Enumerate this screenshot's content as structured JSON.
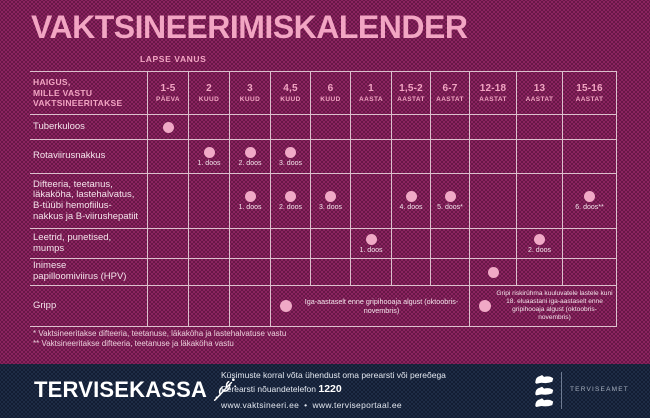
{
  "title": "VAKTSINEERIMISKALENDER",
  "age_axis_label": "LAPSE VANUS",
  "colors": {
    "background": "#9a2c6b",
    "footer_bar": "#24334f",
    "accent_pink": "#f2a5c3",
    "dot_pink": "#f0a9c6",
    "grid_line": "#dcc0cd",
    "light_text": "#f5e4ec"
  },
  "table": {
    "corner_header": [
      "HAIGUS,",
      "MILLE VASTU",
      "VAKTSINEERITAKSE"
    ],
    "age_columns": [
      {
        "value": "1-5",
        "unit": "PÄEVA"
      },
      {
        "value": "2",
        "unit": "KUUD"
      },
      {
        "value": "3",
        "unit": "KUUD"
      },
      {
        "value": "4,5",
        "unit": "KUUD"
      },
      {
        "value": "6",
        "unit": "KUUD"
      },
      {
        "value": "1",
        "unit": "AASTA"
      },
      {
        "value": "1,5-2",
        "unit": "AASTAT"
      },
      {
        "value": "6-7",
        "unit": "AASTAT"
      },
      {
        "value": "12-18",
        "unit": "AASTAT"
      },
      {
        "value": "13",
        "unit": "AASTAT"
      },
      {
        "value": "15-16",
        "unit": "AASTAT"
      }
    ],
    "rows": [
      {
        "disease_lines": [
          "Tuberkuloos"
        ],
        "doses": [
          {
            "col": 0,
            "label": ""
          }
        ]
      },
      {
        "disease_lines": [
          "Rotaviirusnakkus"
        ],
        "doses": [
          {
            "col": 1,
            "label": "1. doos"
          },
          {
            "col": 2,
            "label": "2. doos"
          },
          {
            "col": 3,
            "label": "3. doos"
          }
        ]
      },
      {
        "disease_lines": [
          "Difteeria, teetanus,",
          "läkaköha, lastehalvatus,",
          "B-tüübi hemofiilus-",
          "nakkus ja B-viirushepatiit"
        ],
        "doses": [
          {
            "col": 2,
            "label": "1. doos"
          },
          {
            "col": 3,
            "label": "2. doos"
          },
          {
            "col": 4,
            "label": "3. doos"
          },
          {
            "col": 6,
            "label": "4. doos"
          },
          {
            "col": 7,
            "label": "5. doos*"
          },
          {
            "col": 10,
            "label": "6. doos**"
          }
        ]
      },
      {
        "disease_lines": [
          "Leetrid, punetised,",
          "mumps"
        ],
        "doses": [
          {
            "col": 5,
            "label": "1. doos"
          },
          {
            "col": 9,
            "label": "2. doos"
          }
        ]
      },
      {
        "disease_lines": [
          "Inimese",
          "papilloomiviirus (HPV)"
        ],
        "doses": [
          {
            "col": 8,
            "label": ""
          }
        ]
      },
      {
        "disease_lines": [
          "Gripp"
        ],
        "doses": [],
        "merged": [
          {
            "from": 3,
            "to": 7,
            "text": "Iga-aastaselt enne gripihooaja algust (oktoobris-novembris)"
          },
          {
            "from": 8,
            "to": 10,
            "text": "Gripi riskirühma kuuluvatele lastele kuni 18. eluaastani iga-aastaselt enne gripihooaja algust (oktoobris-novembris)"
          }
        ]
      }
    ]
  },
  "footnotes": [
    "* Vaktsineeritakse difteeria, teetanuse, läkaköha ja lastehalvatuse vastu",
    "** Vaktsineeritakse difteeria, teetanuse ja läkaköha vastu"
  ],
  "footer": {
    "logo_text": "TERVISEKASSA",
    "line1": "Küsimuste korral võta ühendust oma perearsti või pereõega",
    "line2_prefix": "Perearsti nõuandetelefon ",
    "phone_number": "1220",
    "url1": "www.vaktsineeri.ee",
    "separator": "•",
    "url2": "www.terviseportaal.ee",
    "agency": "TERVISEAMET"
  }
}
